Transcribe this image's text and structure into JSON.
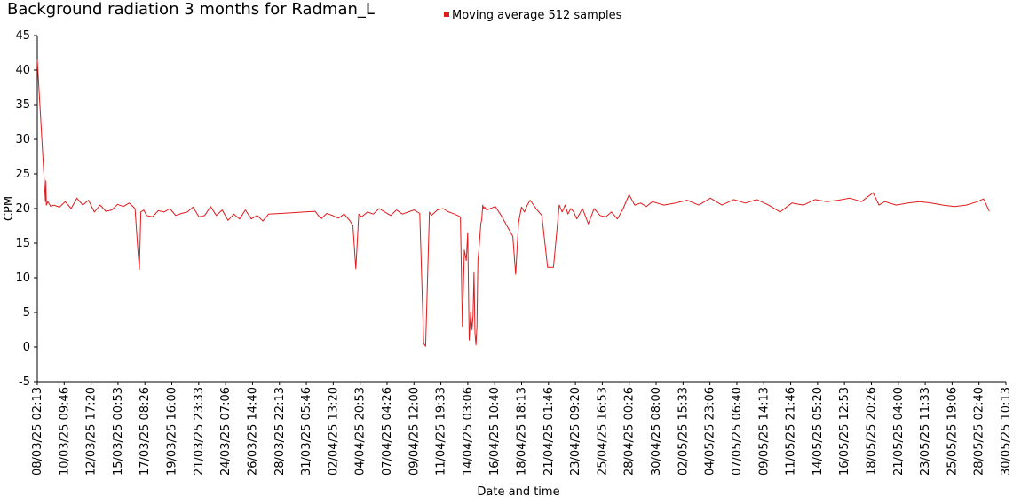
{
  "chart_data": {
    "type": "line",
    "title": "Background radiation 3 months for Radman_L",
    "xlabel": "Date and time",
    "ylabel": "CPM",
    "ylim": [
      -5,
      45
    ],
    "yticks": [
      -5,
      0,
      5,
      10,
      15,
      20,
      25,
      30,
      35,
      40,
      45
    ],
    "grid": false,
    "legend": {
      "position": "top-center",
      "label": "Moving average 512 samples",
      "color": "#e31a1c"
    },
    "series": [
      {
        "name": "Moving average 512 samples",
        "color": "#e31a1c",
        "x": [
          "08/03/25 02:13",
          "08/03/25 19:00",
          "08/03/25 20:00",
          "08/03/25 21:00",
          "09/03/25 00:00",
          "09/03/25 06:00",
          "09/03/25 12:00",
          "10/03/25 00:00",
          "10/03/25 12:00",
          "11/03/25 00:00",
          "11/03/25 12:00",
          "12/03/25 00:00",
          "12/03/25 12:00",
          "13/03/25 00:00",
          "13/03/25 12:00",
          "14/03/25 00:00",
          "14/03/25 12:00",
          "15/03/25 00:00",
          "15/03/25 12:00",
          "16/03/25 00:00",
          "16/03/25 12:00",
          "16/03/25 18:00",
          "16/03/25 21:00",
          "17/03/25 00:00",
          "17/03/25 06:00",
          "17/03/25 12:00",
          "18/03/25 00:00",
          "18/03/25 12:00",
          "19/03/25 00:00",
          "19/03/25 12:00",
          "20/03/25 00:00",
          "20/03/25 12:00",
          "21/03/25 00:00",
          "21/03/25 12:00",
          "22/03/25 00:00",
          "22/03/25 12:00",
          "23/03/25 00:00",
          "23/03/25 12:00",
          "24/03/25 00:00",
          "24/03/25 12:00",
          "25/03/25 00:00",
          "25/03/25 12:00",
          "26/03/25 00:00",
          "26/03/25 12:00",
          "27/03/25 00:00",
          "27/03/25 12:00",
          "28/03/25 00:00",
          "29/03/25 00:00",
          "30/03/25 00:00",
          "31/03/25 00:00",
          "01/04/25 00:00",
          "01/04/25 12:00",
          "02/04/25 00:00",
          "02/04/25 12:00",
          "03/04/25 00:00",
          "03/04/25 12:00",
          "04/04/25 00:00",
          "04/04/25 06:00",
          "04/04/25 12:00",
          "04/04/25 18:00",
          "05/04/25 00:00",
          "05/04/25 12:00",
          "06/04/25 00:00",
          "06/04/25 12:00",
          "07/04/25 00:00",
          "07/04/25 12:00",
          "08/04/25 00:00",
          "08/04/25 12:00",
          "09/04/25 00:00",
          "09/04/25 12:00",
          "10/04/25 00:00",
          "10/04/25 04:00",
          "10/04/25 08:00",
          "10/04/25 12:00",
          "10/04/25 16:00",
          "10/04/25 20:00",
          "11/04/25 00:00",
          "11/04/25 12:00",
          "12/04/25 00:00",
          "12/04/25 12:00",
          "13/04/25 00:00",
          "13/04/25 12:00",
          "13/04/25 16:00",
          "13/04/25 20:00",
          "14/04/25 00:00",
          "14/04/25 03:00",
          "14/04/25 06:00",
          "14/04/25 09:00",
          "14/04/25 12:00",
          "14/04/25 14:00",
          "14/04/25 16:00",
          "14/04/25 18:00",
          "14/04/25 20:00",
          "14/04/25 22:00",
          "15/04/25 00:00",
          "15/04/25 02:00",
          "15/04/25 04:00",
          "15/04/25 06:00",
          "15/04/25 08:00",
          "15/04/25 10:00",
          "15/04/25 12:00",
          "15/04/25 14:00",
          "15/04/25 18:00",
          "16/04/25 12:00",
          "17/04/25 00:00",
          "17/04/25 12:00",
          "18/04/25 00:00",
          "18/04/25 06:00",
          "18/04/25 12:00",
          "18/04/25 18:00",
          "19/04/25 00:00",
          "19/04/25 06:00",
          "19/04/25 12:00",
          "20/04/25 00:00",
          "20/04/25 12:00",
          "21/04/25 00:00",
          "21/04/25 12:00",
          "22/04/25 00:00",
          "22/04/25 06:00",
          "22/04/25 12:00",
          "22/04/25 18:00",
          "23/04/25 00:00",
          "23/04/25 06:00",
          "23/04/25 12:00",
          "24/04/25 00:00",
          "24/04/25 12:00",
          "25/04/25 00:00",
          "25/04/25 12:00",
          "26/04/25 00:00",
          "26/04/25 12:00",
          "27/04/25 00:00",
          "27/04/25 12:00",
          "28/04/25 00:00",
          "28/04/25 12:00",
          "29/04/25 00:00",
          "29/04/25 12:00",
          "30/04/25 00:00",
          "01/05/25 00:00",
          "02/05/25 00:00",
          "03/05/25 00:00",
          "04/05/25 00:00",
          "05/05/25 00:00",
          "06/05/25 00:00",
          "07/05/25 00:00",
          "08/05/25 00:00",
          "09/05/25 00:00",
          "10/05/25 00:00",
          "11/05/25 00:00",
          "12/05/25 00:00",
          "13/05/25 00:00",
          "14/05/25 00:00",
          "15/05/25 00:00",
          "16/05/25 00:00",
          "17/05/25 00:00",
          "18/05/25 00:00",
          "19/05/25 00:00",
          "19/05/25 12:00",
          "20/05/25 00:00",
          "21/05/25 00:00",
          "22/05/25 00:00",
          "23/05/25 00:00",
          "24/05/25 00:00",
          "25/05/25 00:00",
          "26/05/25 00:00",
          "27/05/25 00:00",
          "28/05/25 00:00",
          "28/05/25 12:00",
          "29/05/25 00:00"
        ],
        "y": [
          41.5,
          21.0,
          24.0,
          20.5,
          21.0,
          20.3,
          20.5,
          20.2,
          21.0,
          20.0,
          21.5,
          20.5,
          21.2,
          19.5,
          20.5,
          19.6,
          19.8,
          20.6,
          20.3,
          20.8,
          20.0,
          14.0,
          11.2,
          19.5,
          19.8,
          19.0,
          18.8,
          19.7,
          19.5,
          20.0,
          19.0,
          19.3,
          19.5,
          20.2,
          18.8,
          19.0,
          20.3,
          19.0,
          19.8,
          18.3,
          19.2,
          18.5,
          19.8,
          18.5,
          19.0,
          18.2,
          19.2,
          19.3,
          19.4,
          19.5,
          19.6,
          18.5,
          19.3,
          19.0,
          18.6,
          19.2,
          18.2,
          17.5,
          11.3,
          19.2,
          18.8,
          19.5,
          19.2,
          20.0,
          19.5,
          19.0,
          19.8,
          19.2,
          19.5,
          19.8,
          19.3,
          10.0,
          0.5,
          0.1,
          10.0,
          19.5,
          19.0,
          19.8,
          20.0,
          19.5,
          19.2,
          18.8,
          3.0,
          14.0,
          12.5,
          16.5,
          1.0,
          5.0,
          2.5,
          4.5,
          10.8,
          2.0,
          0.3,
          3.0,
          12.5,
          14.0,
          16.0,
          17.8,
          18.5,
          20.5,
          20.0,
          20.2,
          19.8,
          20.3,
          19.0,
          17.5,
          16.0,
          10.5,
          18.0,
          20.2,
          19.5,
          20.5,
          21.2,
          20.0,
          19.0,
          11.5,
          11.5,
          20.5,
          19.5,
          20.5,
          19.2,
          20.0,
          19.5,
          18.5,
          20.0,
          17.8,
          20.0,
          19.0,
          18.8,
          19.5,
          18.5,
          20.0,
          22.0,
          20.5,
          20.8,
          20.3,
          21.0,
          20.5,
          20.8,
          21.2,
          20.5,
          21.5,
          20.5,
          21.3,
          20.8,
          21.3,
          20.5,
          19.5,
          20.8,
          20.5,
          21.3,
          21.0,
          21.2,
          21.5,
          21.0,
          22.3,
          20.5,
          21.0,
          20.5,
          20.8,
          21.0,
          20.8,
          20.5,
          20.3,
          20.5,
          21.0,
          21.4,
          19.6
        ]
      }
    ],
    "x_ticks": [
      "08/03/25 02:13",
      "10/03/25 09:46",
      "12/03/25 17:20",
      "15/03/25 00:53",
      "17/03/25 08:26",
      "19/03/25 16:00",
      "21/03/25 23:33",
      "24/03/25 07:06",
      "26/03/25 14:40",
      "28/03/25 22:13",
      "31/03/25 05:46",
      "02/04/25 13:20",
      "04/04/25 20:53",
      "07/04/25 04:26",
      "09/04/25 12:00",
      "11/04/25 19:33",
      "14/04/25 03:06",
      "16/04/25 10:40",
      "18/04/25 18:13",
      "21/04/25 01:46",
      "23/04/25 09:20",
      "25/04/25 16:53",
      "28/04/25 00:26",
      "30/04/25 08:00",
      "02/05/25 15:33",
      "04/05/25 23:06",
      "07/05/25 06:40",
      "09/05/25 14:13",
      "11/05/25 21:46",
      "14/05/25 05:20",
      "16/05/25 12:53",
      "18/05/25 20:26",
      "21/05/25 04:00",
      "23/05/25 11:33",
      "25/05/25 19:06",
      "28/05/25 02:40",
      "30/05/25 10:13"
    ]
  }
}
